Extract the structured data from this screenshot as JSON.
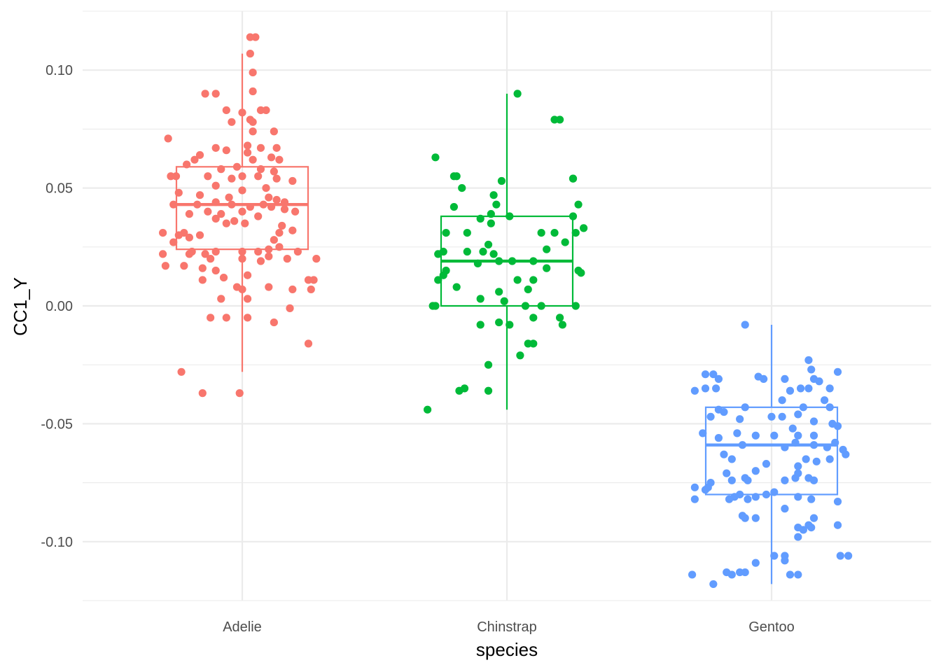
{
  "chart_data": {
    "type": "boxplot",
    "xlabel": "species",
    "ylabel": "CC1_Y",
    "categories": [
      "Adelie",
      "Chinstrap",
      "Gentoo"
    ],
    "colors": [
      "#F8766D",
      "#00BA38",
      "#619CFF"
    ],
    "ylim": [
      -0.125,
      0.125
    ],
    "yticks": [
      -0.1,
      -0.05,
      0.0,
      0.05,
      0.1
    ],
    "ytick_labels": [
      "-0.10",
      "-0.05",
      "0.00",
      "0.05",
      "0.10"
    ],
    "yminor": [
      -0.125,
      -0.075,
      -0.025,
      0.025,
      0.075,
      0.125
    ],
    "boxes": [
      {
        "category": "Adelie",
        "whisker_low": -0.028,
        "q1": 0.024,
        "median": 0.043,
        "q3": 0.059,
        "whisker_high": 0.107
      },
      {
        "category": "Chinstrap",
        "whisker_low": -0.044,
        "q1": 0.0,
        "median": 0.019,
        "q3": 0.038,
        "whisker_high": 0.09
      },
      {
        "category": "Gentoo",
        "whisker_low": -0.118,
        "q1": -0.08,
        "median": -0.059,
        "q3": -0.043,
        "whisker_high": -0.008
      }
    ],
    "points": [
      {
        "category": "Adelie",
        "values": [
          [
            -0.22,
            0.031
          ],
          [
            0.05,
            0.114
          ],
          [
            0.03,
            0.114
          ],
          [
            0.03,
            0.107
          ],
          [
            0.04,
            0.099
          ],
          [
            0.04,
            0.091
          ],
          [
            -0.14,
            0.09
          ],
          [
            -0.1,
            0.09
          ],
          [
            0.07,
            0.083
          ],
          [
            0.09,
            0.083
          ],
          [
            -0.06,
            0.083
          ],
          [
            0.0,
            0.082
          ],
          [
            0.04,
            0.078
          ],
          [
            0.03,
            0.079
          ],
          [
            -0.04,
            0.078
          ],
          [
            0.12,
            0.074
          ],
          [
            0.04,
            0.074
          ],
          [
            -0.28,
            0.071
          ],
          [
            0.02,
            0.068
          ],
          [
            0.07,
            0.067
          ],
          [
            0.13,
            0.067
          ],
          [
            -0.06,
            0.066
          ],
          [
            -0.1,
            0.067
          ],
          [
            0.02,
            0.065
          ],
          [
            -0.16,
            0.064
          ],
          [
            -0.18,
            0.062
          ],
          [
            0.04,
            0.062
          ],
          [
            0.11,
            0.063
          ],
          [
            0.14,
            0.062
          ],
          [
            -0.21,
            0.06
          ],
          [
            -0.02,
            0.059
          ],
          [
            0.07,
            0.058
          ],
          [
            -0.08,
            0.058
          ],
          [
            0.12,
            0.057
          ],
          [
            -0.25,
            0.055
          ],
          [
            -0.27,
            0.055
          ],
          [
            -0.13,
            0.055
          ],
          [
            -0.04,
            0.054
          ],
          [
            0.0,
            0.055
          ],
          [
            0.06,
            0.055
          ],
          [
            0.13,
            0.054
          ],
          [
            0.19,
            0.053
          ],
          [
            -0.1,
            0.051
          ],
          [
            0.09,
            0.05
          ],
          [
            0.0,
            0.049
          ],
          [
            -0.24,
            0.048
          ],
          [
            -0.16,
            0.047
          ],
          [
            -0.05,
            0.046
          ],
          [
            0.1,
            0.046
          ],
          [
            0.13,
            0.045
          ],
          [
            0.16,
            0.044
          ],
          [
            -0.1,
            0.044
          ],
          [
            -0.04,
            0.043
          ],
          [
            -0.17,
            0.043
          ],
          [
            0.08,
            0.043
          ],
          [
            0.03,
            0.042
          ],
          [
            -0.26,
            0.043
          ],
          [
            -0.13,
            0.04
          ],
          [
            -0.2,
            0.039
          ],
          [
            -0.08,
            0.039
          ],
          [
            0.16,
            0.041
          ],
          [
            0.2,
            0.04
          ],
          [
            0.11,
            0.042
          ],
          [
            0.0,
            0.04
          ],
          [
            0.06,
            0.038
          ],
          [
            -0.1,
            0.037
          ],
          [
            -0.03,
            0.036
          ],
          [
            -0.06,
            0.035
          ],
          [
            0.01,
            0.035
          ],
          [
            0.15,
            0.034
          ],
          [
            0.19,
            0.032
          ],
          [
            0.14,
            0.031
          ],
          [
            -0.3,
            0.031
          ],
          [
            -0.24,
            0.03
          ],
          [
            -0.16,
            0.03
          ],
          [
            -0.2,
            0.029
          ],
          [
            0.12,
            0.028
          ],
          [
            -0.26,
            0.027
          ],
          [
            0.14,
            0.025
          ],
          [
            -0.1,
            0.023
          ],
          [
            -0.19,
            0.023
          ],
          [
            0.0,
            0.023
          ],
          [
            0.06,
            0.023
          ],
          [
            0.1,
            0.024
          ],
          [
            0.21,
            0.023
          ],
          [
            -0.3,
            0.022
          ],
          [
            -0.2,
            0.022
          ],
          [
            -0.14,
            0.022
          ],
          [
            0.0,
            0.02
          ],
          [
            -0.12,
            0.02
          ],
          [
            0.07,
            0.019
          ],
          [
            -0.22,
            0.017
          ],
          [
            -0.29,
            0.017
          ],
          [
            0.1,
            0.021
          ],
          [
            0.17,
            0.02
          ],
          [
            0.28,
            0.02
          ],
          [
            -0.15,
            0.016
          ],
          [
            -0.1,
            0.015
          ],
          [
            0.02,
            0.013
          ],
          [
            -0.07,
            0.012
          ],
          [
            0.25,
            0.011
          ],
          [
            -0.15,
            0.011
          ],
          [
            0.1,
            0.008
          ],
          [
            -0.02,
            0.008
          ],
          [
            0.0,
            0.007
          ],
          [
            0.26,
            0.007
          ],
          [
            0.19,
            0.007
          ],
          [
            -0.08,
            0.003
          ],
          [
            0.02,
            0.003
          ],
          [
            0.18,
            -0.001
          ],
          [
            0.27,
            0.011
          ],
          [
            -0.12,
            -0.005
          ],
          [
            0.02,
            -0.005
          ],
          [
            -0.06,
            -0.005
          ],
          [
            0.12,
            -0.007
          ],
          [
            0.25,
            -0.016
          ],
          [
            -0.23,
            -0.028
          ],
          [
            -0.15,
            -0.037
          ],
          [
            -0.01,
            -0.037
          ]
        ]
      },
      {
        "category": "Chinstrap",
        "values": [
          [
            0.04,
            0.09
          ],
          [
            0.18,
            0.079
          ],
          [
            0.2,
            0.079
          ],
          [
            -0.27,
            0.063
          ],
          [
            -0.19,
            0.055
          ],
          [
            -0.2,
            0.055
          ],
          [
            0.25,
            0.054
          ],
          [
            -0.02,
            0.053
          ],
          [
            0.25,
            0.054
          ],
          [
            -0.17,
            0.05
          ],
          [
            -0.05,
            0.047
          ],
          [
            0.27,
            0.043
          ],
          [
            -0.2,
            0.042
          ],
          [
            -0.04,
            0.043
          ],
          [
            -0.06,
            0.039
          ],
          [
            -0.1,
            0.037
          ],
          [
            0.01,
            0.038
          ],
          [
            0.25,
            0.038
          ],
          [
            -0.06,
            0.035
          ],
          [
            0.29,
            0.033
          ],
          [
            0.26,
            0.031
          ],
          [
            0.18,
            0.031
          ],
          [
            -0.23,
            0.031
          ],
          [
            -0.15,
            0.031
          ],
          [
            0.13,
            0.031
          ],
          [
            -0.07,
            0.026
          ],
          [
            0.22,
            0.027
          ],
          [
            0.15,
            0.024
          ],
          [
            -0.09,
            0.023
          ],
          [
            -0.15,
            0.023
          ],
          [
            -0.24,
            0.023
          ],
          [
            -0.26,
            0.022
          ],
          [
            -0.05,
            0.022
          ],
          [
            0.02,
            0.019
          ],
          [
            -0.03,
            0.019
          ],
          [
            0.1,
            0.019
          ],
          [
            -0.11,
            0.018
          ],
          [
            0.27,
            0.015
          ],
          [
            0.15,
            0.016
          ],
          [
            0.28,
            0.014
          ],
          [
            -0.23,
            0.015
          ],
          [
            -0.24,
            0.013
          ],
          [
            -0.26,
            0.011
          ],
          [
            0.04,
            0.011
          ],
          [
            0.1,
            0.011
          ],
          [
            -0.19,
            0.008
          ],
          [
            -0.03,
            0.006
          ],
          [
            0.08,
            0.007
          ],
          [
            -0.1,
            0.003
          ],
          [
            -0.01,
            0.002
          ],
          [
            -0.28,
            0.0
          ],
          [
            -0.27,
            0.0
          ],
          [
            0.07,
            0.0
          ],
          [
            0.13,
            0.0
          ],
          [
            0.26,
            0.0
          ],
          [
            0.1,
            -0.005
          ],
          [
            0.2,
            -0.005
          ],
          [
            -0.1,
            -0.008
          ],
          [
            0.21,
            -0.008
          ],
          [
            0.01,
            -0.008
          ],
          [
            -0.03,
            -0.007
          ],
          [
            0.1,
            -0.016
          ],
          [
            0.08,
            -0.016
          ],
          [
            0.05,
            -0.021
          ],
          [
            -0.07,
            -0.025
          ],
          [
            -0.18,
            -0.036
          ],
          [
            -0.16,
            -0.035
          ],
          [
            -0.07,
            -0.036
          ],
          [
            -0.3,
            -0.044
          ]
        ]
      },
      {
        "category": "Gentoo",
        "values": [
          [
            -0.1,
            -0.008
          ],
          [
            0.14,
            -0.023
          ],
          [
            0.15,
            -0.027
          ],
          [
            0.05,
            -0.031
          ],
          [
            0.16,
            -0.031
          ],
          [
            -0.03,
            -0.031
          ],
          [
            -0.2,
            -0.031
          ],
          [
            0.18,
            -0.032
          ],
          [
            -0.22,
            -0.029
          ],
          [
            0.25,
            -0.028
          ],
          [
            -0.25,
            -0.029
          ],
          [
            -0.05,
            -0.03
          ],
          [
            0.11,
            -0.035
          ],
          [
            0.14,
            -0.035
          ],
          [
            -0.29,
            -0.036
          ],
          [
            -0.25,
            -0.035
          ],
          [
            0.22,
            -0.035
          ],
          [
            0.07,
            -0.036
          ],
          [
            -0.21,
            -0.035
          ],
          [
            0.04,
            -0.04
          ],
          [
            0.2,
            -0.04
          ],
          [
            -0.1,
            -0.043
          ],
          [
            0.12,
            -0.043
          ],
          [
            0.22,
            -0.043
          ],
          [
            -0.2,
            -0.044
          ],
          [
            -0.18,
            -0.045
          ],
          [
            -0.23,
            -0.047
          ],
          [
            0.1,
            -0.046
          ],
          [
            0.0,
            -0.047
          ],
          [
            -0.12,
            -0.048
          ],
          [
            0.04,
            -0.047
          ],
          [
            0.16,
            -0.049
          ],
          [
            0.23,
            -0.05
          ],
          [
            0.08,
            -0.052
          ],
          [
            0.25,
            -0.051
          ],
          [
            -0.26,
            -0.054
          ],
          [
            -0.13,
            -0.054
          ],
          [
            -0.06,
            -0.055
          ],
          [
            0.01,
            -0.055
          ],
          [
            0.1,
            -0.055
          ],
          [
            0.16,
            -0.055
          ],
          [
            -0.2,
            -0.056
          ],
          [
            0.09,
            -0.058
          ],
          [
            -0.11,
            -0.059
          ],
          [
            0.16,
            -0.059
          ],
          [
            0.24,
            -0.058
          ],
          [
            0.05,
            -0.06
          ],
          [
            0.21,
            -0.06
          ],
          [
            0.27,
            -0.061
          ],
          [
            0.28,
            -0.063
          ],
          [
            -0.18,
            -0.063
          ],
          [
            -0.15,
            -0.065
          ],
          [
            0.13,
            -0.065
          ],
          [
            0.17,
            -0.066
          ],
          [
            0.22,
            -0.065
          ],
          [
            -0.02,
            -0.067
          ],
          [
            0.1,
            -0.068
          ],
          [
            -0.06,
            -0.07
          ],
          [
            -0.17,
            -0.071
          ],
          [
            0.1,
            -0.071
          ],
          [
            -0.1,
            -0.073
          ],
          [
            -0.09,
            -0.074
          ],
          [
            -0.23,
            -0.075
          ],
          [
            -0.15,
            -0.074
          ],
          [
            -0.24,
            -0.077
          ],
          [
            0.14,
            -0.073
          ],
          [
            0.09,
            -0.073
          ],
          [
            0.05,
            -0.074
          ],
          [
            0.16,
            -0.074
          ],
          [
            -0.29,
            -0.077
          ],
          [
            -0.25,
            -0.078
          ],
          [
            -0.14,
            -0.081
          ],
          [
            -0.12,
            -0.08
          ],
          [
            -0.06,
            -0.081
          ],
          [
            -0.09,
            -0.082
          ],
          [
            0.01,
            -0.079
          ],
          [
            -0.02,
            -0.08
          ],
          [
            0.1,
            -0.081
          ],
          [
            0.15,
            -0.082
          ],
          [
            -0.16,
            -0.082
          ],
          [
            0.25,
            -0.083
          ],
          [
            0.05,
            -0.086
          ],
          [
            -0.29,
            -0.082
          ],
          [
            -0.11,
            -0.089
          ],
          [
            -0.06,
            -0.09
          ],
          [
            -0.1,
            -0.09
          ],
          [
            0.16,
            -0.09
          ],
          [
            0.25,
            -0.093
          ],
          [
            0.14,
            -0.093
          ],
          [
            0.12,
            -0.095
          ],
          [
            0.1,
            -0.094
          ],
          [
            0.15,
            -0.094
          ],
          [
            0.1,
            -0.098
          ],
          [
            0.26,
            -0.106
          ],
          [
            0.05,
            -0.106
          ],
          [
            0.29,
            -0.106
          ],
          [
            0.01,
            -0.106
          ],
          [
            0.05,
            -0.108
          ],
          [
            -0.06,
            -0.109
          ],
          [
            -0.1,
            -0.113
          ],
          [
            -0.17,
            -0.113
          ],
          [
            -0.15,
            -0.114
          ],
          [
            -0.12,
            -0.113
          ],
          [
            0.07,
            -0.114
          ],
          [
            0.1,
            -0.114
          ],
          [
            -0.3,
            -0.114
          ],
          [
            -0.22,
            -0.118
          ]
        ]
      }
    ]
  }
}
